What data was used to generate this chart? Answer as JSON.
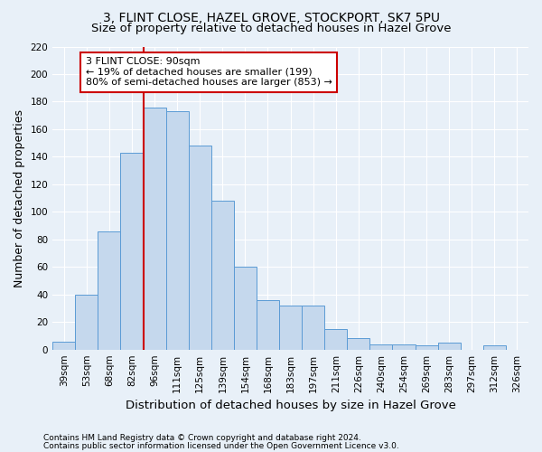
{
  "title": "3, FLINT CLOSE, HAZEL GROVE, STOCKPORT, SK7 5PU",
  "subtitle": "Size of property relative to detached houses in Hazel Grove",
  "xlabel": "Distribution of detached houses by size in Hazel Grove",
  "ylabel": "Number of detached properties",
  "footer1": "Contains HM Land Registry data © Crown copyright and database right 2024.",
  "footer2": "Contains public sector information licensed under the Open Government Licence v3.0.",
  "categories": [
    "39sqm",
    "53sqm",
    "68sqm",
    "82sqm",
    "96sqm",
    "111sqm",
    "125sqm",
    "139sqm",
    "154sqm",
    "168sqm",
    "183sqm",
    "197sqm",
    "211sqm",
    "226sqm",
    "240sqm",
    "254sqm",
    "269sqm",
    "283sqm",
    "297sqm",
    "312sqm",
    "326sqm"
  ],
  "values": [
    6,
    40,
    86,
    143,
    176,
    173,
    148,
    108,
    60,
    36,
    32,
    32,
    15,
    8,
    4,
    4,
    3,
    5,
    0,
    3,
    0
  ],
  "bar_color": "#c5d8ed",
  "bar_edge_color": "#5b9bd5",
  "highlight_bar_index": 4,
  "highlight_color": "#cc0000",
  "annotation_line1": "3 FLINT CLOSE: 90sqm",
  "annotation_line2": "← 19% of detached houses are smaller (199)",
  "annotation_line3": "80% of semi-detached houses are larger (853) →",
  "annotation_box_color": "#ffffff",
  "annotation_box_edge": "#cc0000",
  "ylim": [
    0,
    220
  ],
  "yticks": [
    0,
    20,
    40,
    60,
    80,
    100,
    120,
    140,
    160,
    180,
    200,
    220
  ],
  "bg_color": "#e8f0f8",
  "grid_color": "#ffffff",
  "title_fontsize": 10,
  "subtitle_fontsize": 9.5,
  "ylabel_fontsize": 9,
  "xlabel_fontsize": 9.5,
  "tick_fontsize": 7.5,
  "annotation_fontsize": 8,
  "footer_fontsize": 6.5
}
